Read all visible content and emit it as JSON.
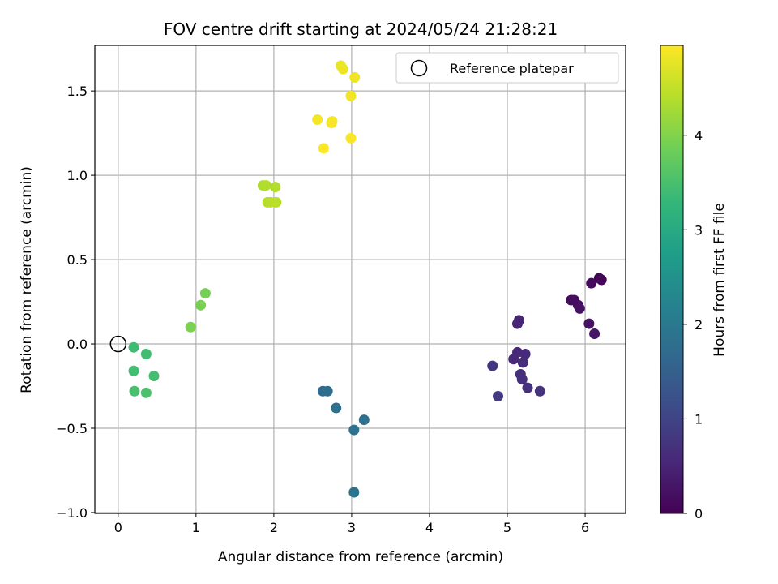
{
  "chart_data": {
    "type": "scatter",
    "title": "FOV centre drift starting at 2024/05/24 21:28:21",
    "xlabel": "Angular distance from reference (arcmin)",
    "ylabel": "Rotation from reference (arcmin)",
    "xlim": [
      -0.3,
      6.52
    ],
    "ylim": [
      -1.005,
      1.77
    ],
    "xticks": [
      0,
      1,
      2,
      3,
      4,
      5,
      6
    ],
    "xtick_labels": [
      "0",
      "1",
      "2",
      "3",
      "4",
      "5",
      "6"
    ],
    "yticks": [
      -1.0,
      -0.5,
      0.0,
      0.5,
      1.0,
      1.5
    ],
    "ytick_labels": [
      "−1.0",
      "−0.5",
      "0.0",
      "0.5",
      "1.0",
      "1.5"
    ],
    "grid": true,
    "legend": {
      "label": "Reference platepar",
      "position": "top-right",
      "marker": "hollow-circle"
    },
    "reference_point": {
      "x": 0,
      "y": 0
    },
    "colorbar": {
      "label": "Hours from first FF file",
      "range": [
        0,
        4.95
      ],
      "ticks": [
        0,
        1,
        2,
        3,
        4
      ],
      "tick_labels": [
        "0",
        "1",
        "2",
        "3",
        "4"
      ],
      "colormap": "viridis"
    },
    "points": [
      {
        "x": 6.18,
        "y": 0.39,
        "c": 0.05
      },
      {
        "x": 6.21,
        "y": 0.38,
        "c": 0.08
      },
      {
        "x": 6.08,
        "y": 0.36,
        "c": 0.12
      },
      {
        "x": 5.82,
        "y": 0.26,
        "c": 0.15
      },
      {
        "x": 5.86,
        "y": 0.26,
        "c": 0.18
      },
      {
        "x": 5.91,
        "y": 0.23,
        "c": 0.2
      },
      {
        "x": 5.93,
        "y": 0.21,
        "c": 0.23
      },
      {
        "x": 6.05,
        "y": 0.12,
        "c": 0.25
      },
      {
        "x": 6.12,
        "y": 0.06,
        "c": 0.28
      },
      {
        "x": 5.15,
        "y": 0.14,
        "c": 0.5
      },
      {
        "x": 5.13,
        "y": 0.12,
        "c": 0.52
      },
      {
        "x": 5.13,
        "y": -0.05,
        "c": 0.55
      },
      {
        "x": 5.08,
        "y": -0.09,
        "c": 0.57
      },
      {
        "x": 5.23,
        "y": -0.06,
        "c": 0.6
      },
      {
        "x": 5.2,
        "y": -0.11,
        "c": 0.62
      },
      {
        "x": 5.17,
        "y": -0.18,
        "c": 0.65
      },
      {
        "x": 5.19,
        "y": -0.21,
        "c": 0.67
      },
      {
        "x": 5.26,
        "y": -0.26,
        "c": 0.7
      },
      {
        "x": 5.42,
        "y": -0.28,
        "c": 0.72
      },
      {
        "x": 4.81,
        "y": -0.13,
        "c": 0.8
      },
      {
        "x": 4.88,
        "y": -0.31,
        "c": 0.85
      },
      {
        "x": 2.63,
        "y": -0.28,
        "c": 1.7
      },
      {
        "x": 2.69,
        "y": -0.28,
        "c": 1.75
      },
      {
        "x": 2.8,
        "y": -0.38,
        "c": 1.8
      },
      {
        "x": 3.16,
        "y": -0.45,
        "c": 1.83
      },
      {
        "x": 3.03,
        "y": -0.51,
        "c": 1.87
      },
      {
        "x": 3.03,
        "y": -0.88,
        "c": 1.9
      },
      {
        "x": 0.2,
        "y": -0.02,
        "c": 3.4
      },
      {
        "x": 0.36,
        "y": -0.06,
        "c": 3.42
      },
      {
        "x": 0.2,
        "y": -0.16,
        "c": 3.45
      },
      {
        "x": 0.46,
        "y": -0.19,
        "c": 3.47
      },
      {
        "x": 0.21,
        "y": -0.28,
        "c": 3.5
      },
      {
        "x": 0.36,
        "y": -0.29,
        "c": 3.52
      },
      {
        "x": 1.12,
        "y": 0.3,
        "c": 3.9
      },
      {
        "x": 1.06,
        "y": 0.23,
        "c": 3.92
      },
      {
        "x": 0.93,
        "y": 0.1,
        "c": 3.95
      },
      {
        "x": 1.86,
        "y": 0.94,
        "c": 4.35
      },
      {
        "x": 1.9,
        "y": 0.94,
        "c": 4.37
      },
      {
        "x": 2.02,
        "y": 0.93,
        "c": 4.38
      },
      {
        "x": 1.92,
        "y": 0.84,
        "c": 4.4
      },
      {
        "x": 1.96,
        "y": 0.84,
        "c": 4.42
      },
      {
        "x": 2.03,
        "y": 0.84,
        "c": 4.43
      },
      {
        "x": 2.86,
        "y": 1.65,
        "c": 4.8
      },
      {
        "x": 2.89,
        "y": 1.63,
        "c": 4.82
      },
      {
        "x": 3.04,
        "y": 1.58,
        "c": 4.84
      },
      {
        "x": 2.99,
        "y": 1.47,
        "c": 4.86
      },
      {
        "x": 2.56,
        "y": 1.33,
        "c": 4.88
      },
      {
        "x": 2.75,
        "y": 1.32,
        "c": 4.89
      },
      {
        "x": 2.74,
        "y": 1.31,
        "c": 4.9
      },
      {
        "x": 2.99,
        "y": 1.22,
        "c": 4.92
      },
      {
        "x": 2.64,
        "y": 1.16,
        "c": 4.94
      }
    ]
  }
}
